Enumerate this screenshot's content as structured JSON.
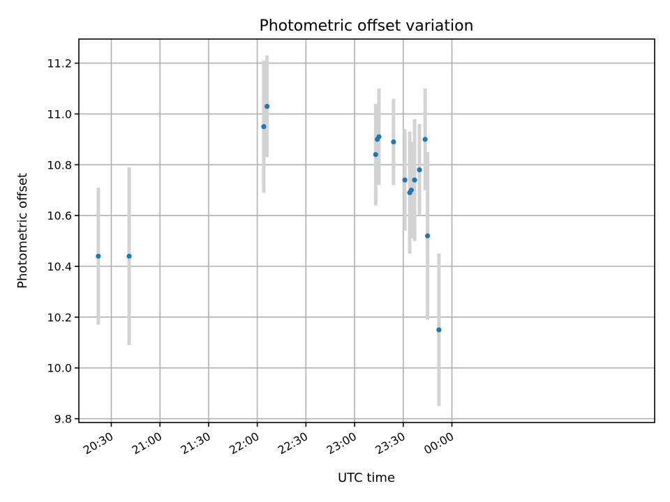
{
  "chart_data": {
    "type": "scatter",
    "title": "Photometric offset variation",
    "xlabel": "UTC time",
    "ylabel": "Photometric offset",
    "x_unit": "minutes after 20:00 UTC",
    "xlim": [
      10,
      365
    ],
    "ylim": [
      9.785,
      11.295
    ],
    "grid": true,
    "legend": "none",
    "x_ticks": [
      {
        "value": 30,
        "label": "20:30"
      },
      {
        "value": 60,
        "label": "21:00"
      },
      {
        "value": 90,
        "label": "21:30"
      },
      {
        "value": 120,
        "label": "22:00"
      },
      {
        "value": 150,
        "label": "22:30"
      },
      {
        "value": 180,
        "label": "23:00"
      },
      {
        "value": 210,
        "label": "23:30"
      },
      {
        "value": 240,
        "label": "00:00"
      }
    ],
    "y_ticks": [
      {
        "value": 9.8,
        "label": "9.8"
      },
      {
        "value": 10.0,
        "label": "10.0"
      },
      {
        "value": 10.2,
        "label": "10.2"
      },
      {
        "value": 10.4,
        "label": "10.4"
      },
      {
        "value": 10.6,
        "label": "10.6"
      },
      {
        "value": 10.8,
        "label": "10.8"
      },
      {
        "value": 11.0,
        "label": "11.0"
      },
      {
        "value": 11.2,
        "label": "11.2"
      }
    ],
    "series": [
      {
        "name": "Photometric offset",
        "points": [
          {
            "x": 22.0,
            "y": 10.44,
            "err": 0.27
          },
          {
            "x": 41.0,
            "y": 10.44,
            "err": 0.35
          },
          {
            "x": 124.0,
            "y": 10.95,
            "err": 0.26
          },
          {
            "x": 126.0,
            "y": 11.03,
            "err": 0.2
          },
          {
            "x": 193.0,
            "y": 10.84,
            "err": 0.2
          },
          {
            "x": 194.0,
            "y": 10.9,
            "err": 0.13
          },
          {
            "x": 195.0,
            "y": 10.91,
            "err": 0.19
          },
          {
            "x": 204.0,
            "y": 10.89,
            "err": 0.17
          },
          {
            "x": 211.0,
            "y": 10.74,
            "err": 0.2
          },
          {
            "x": 214.0,
            "y": 10.69,
            "err": 0.24
          },
          {
            "x": 215.0,
            "y": 10.7,
            "err": 0.19
          },
          {
            "x": 217.0,
            "y": 10.74,
            "err": 0.24
          },
          {
            "x": 220.0,
            "y": 10.78,
            "err": 0.18
          },
          {
            "x": 223.5,
            "y": 10.9,
            "err": 0.2
          },
          {
            "x": 225.0,
            "y": 10.52,
            "err": 0.33
          },
          {
            "x": 232.0,
            "y": 10.15,
            "err": 0.3
          }
        ]
      }
    ],
    "colors": {
      "point": "#1f77b4",
      "error_bar": "#d3d3d3",
      "grid": "#b0b0b0",
      "axis": "#000000"
    }
  }
}
